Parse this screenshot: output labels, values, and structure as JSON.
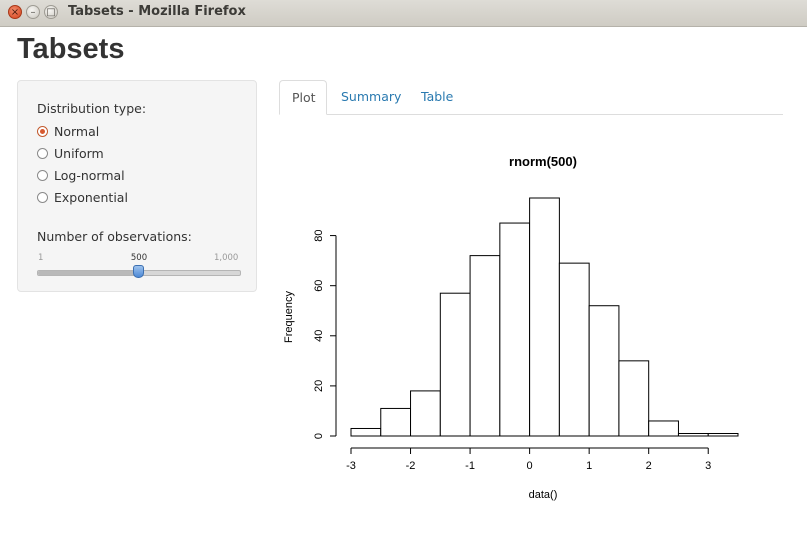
{
  "window": {
    "title": "Tabsets - Mozilla Firefox",
    "close_glyph": "×",
    "min_glyph": "–",
    "max_glyph": "□"
  },
  "page": {
    "title": "Tabsets"
  },
  "sidebar": {
    "distribution_label": "Distribution type:",
    "distribution_options": [
      {
        "label": "Normal",
        "selected": true
      },
      {
        "label": "Uniform",
        "selected": false
      },
      {
        "label": "Log-normal",
        "selected": false
      },
      {
        "label": "Exponential",
        "selected": false
      }
    ],
    "obs_label": "Number of observations:",
    "slider": {
      "min_label": "1",
      "value_label": "500",
      "max_label": "1,000",
      "min": 1,
      "max": 1000,
      "value": 500
    }
  },
  "tabs": [
    {
      "label": "Plot",
      "active": true
    },
    {
      "label": "Summary",
      "active": false
    },
    {
      "label": "Table",
      "active": false
    }
  ],
  "chart_data": {
    "type": "bar",
    "title": "rnorm(500)",
    "xlabel": "data()",
    "ylabel": "Frequency",
    "bin_edges": [
      -3,
      -2.5,
      -2,
      -1.5,
      -1,
      -0.5,
      0,
      0.5,
      1,
      1.5,
      2,
      2.5,
      3,
      3.5
    ],
    "values": [
      3,
      11,
      18,
      57,
      72,
      85,
      95,
      69,
      52,
      30,
      6,
      1,
      1
    ],
    "xticks": [
      -3,
      -2,
      -1,
      0,
      1,
      2,
      3
    ],
    "xtick_labels": [
      "-3",
      "-2",
      "-1",
      "0",
      "1",
      "2",
      "3"
    ],
    "yticks": [
      0,
      20,
      40,
      60,
      80
    ],
    "ytick_labels": [
      "0",
      "20",
      "40",
      "60",
      "80"
    ],
    "xlim": [
      -3,
      3.5
    ],
    "ylim": [
      0,
      95
    ]
  }
}
